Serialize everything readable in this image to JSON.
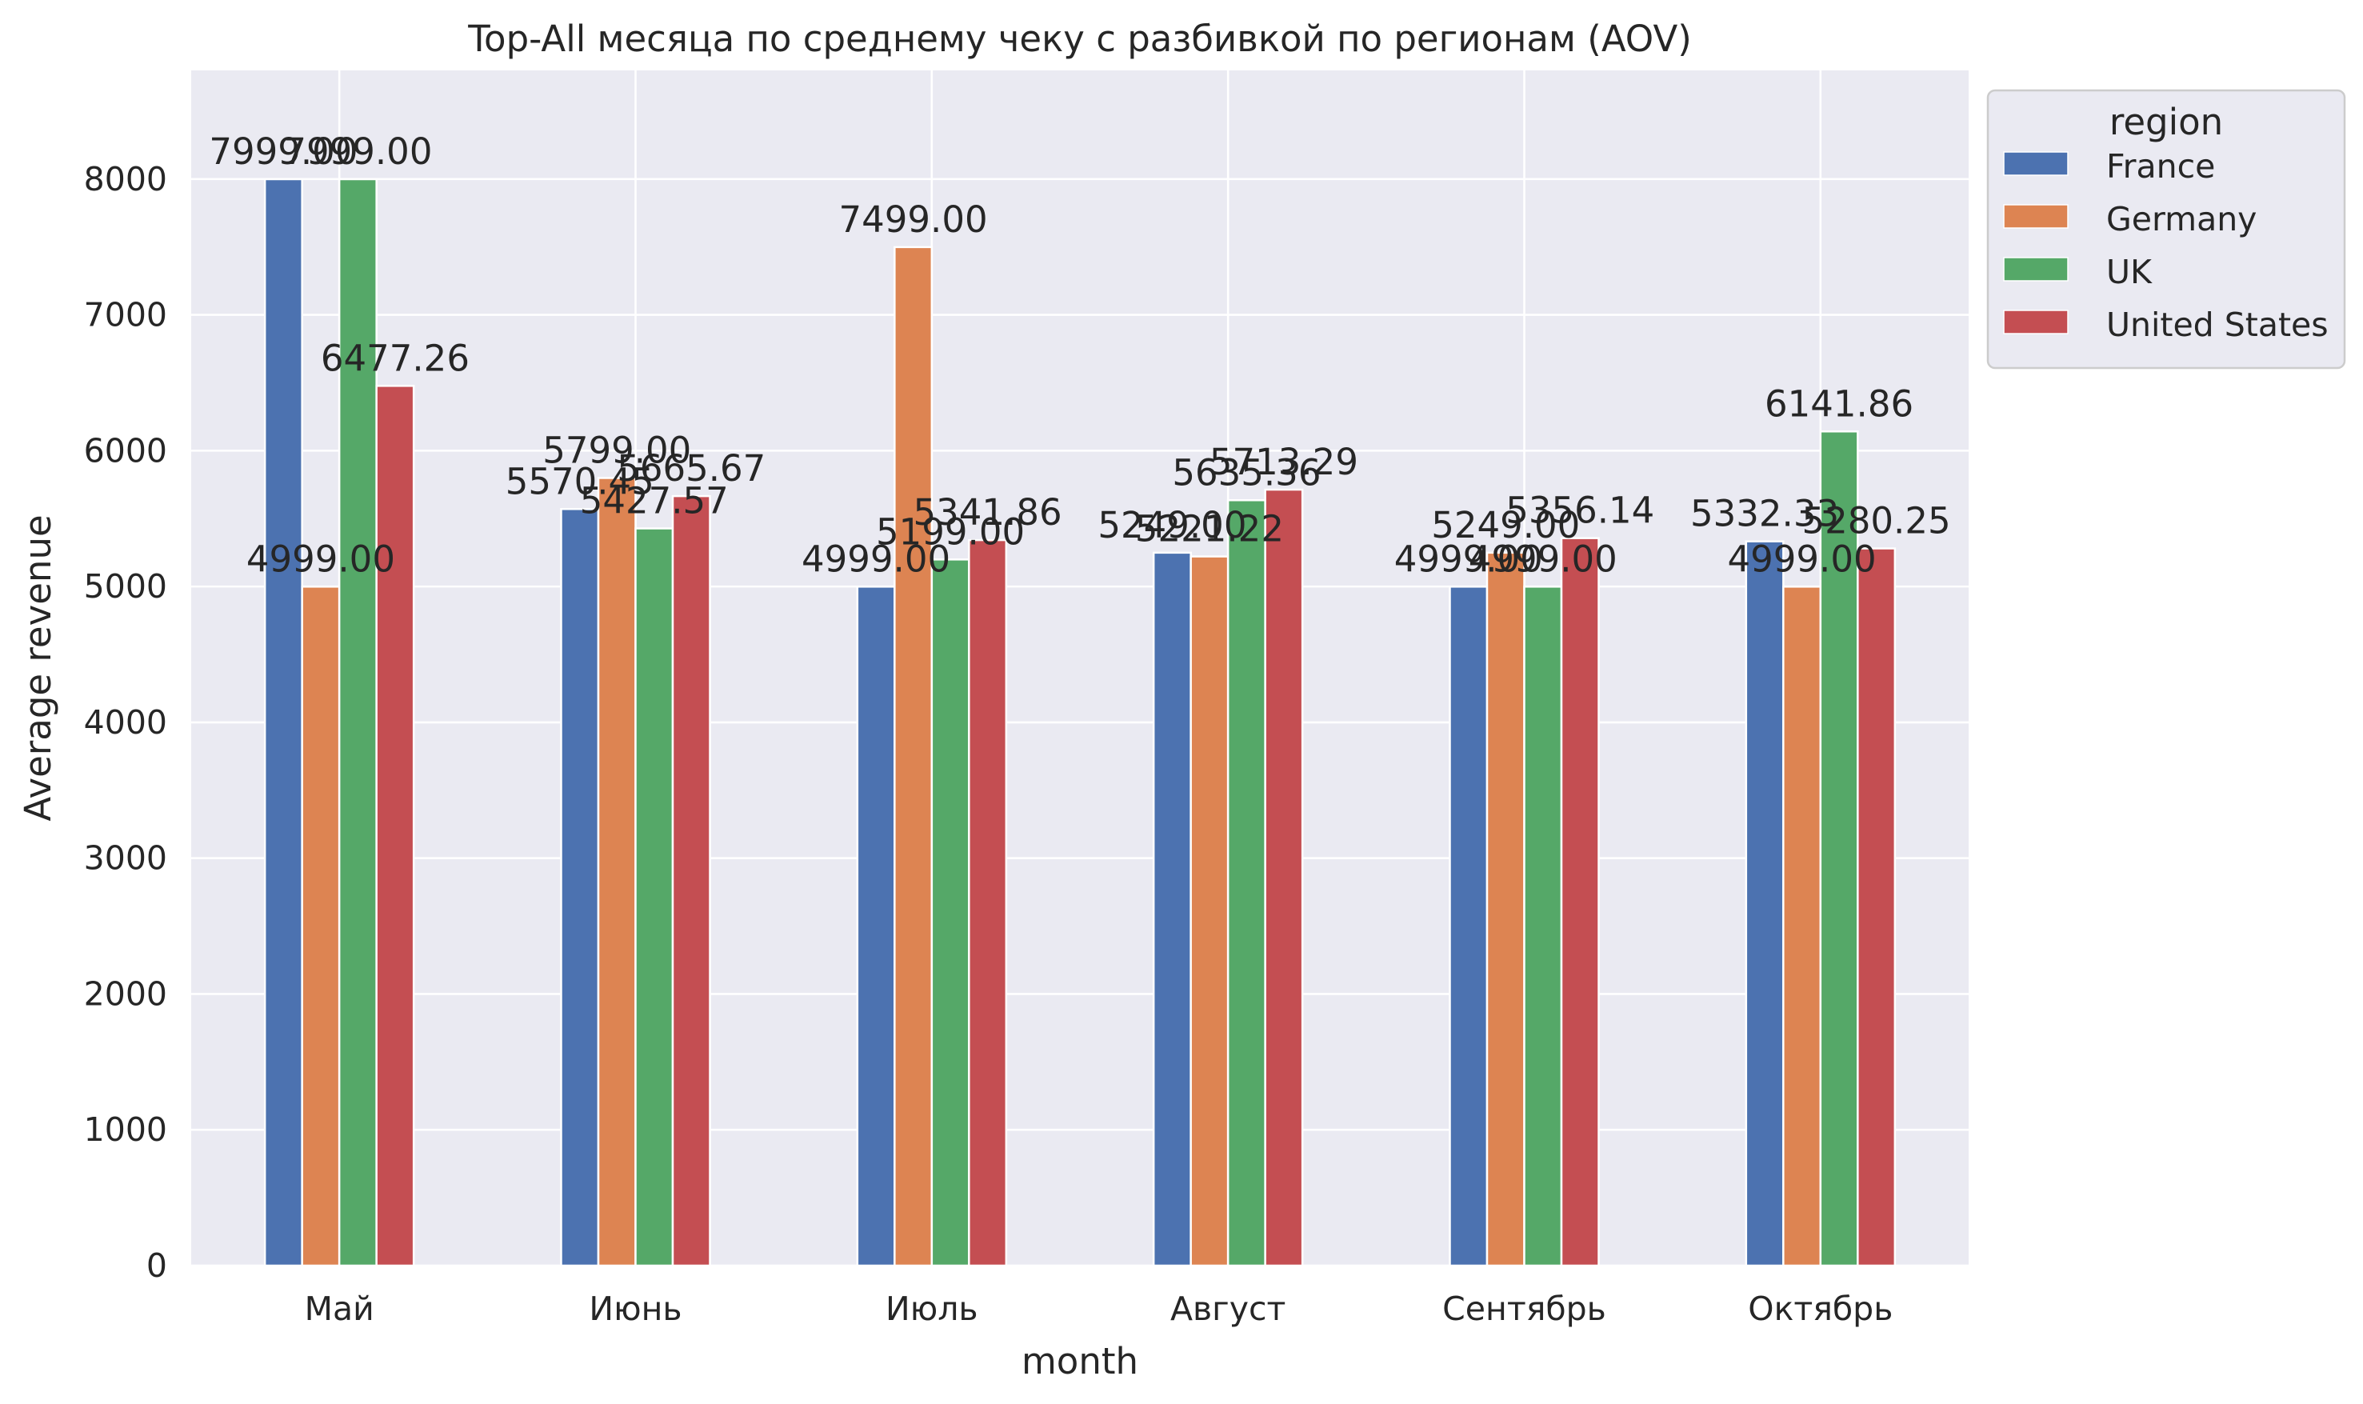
{
  "chart_data": {
    "type": "bar",
    "title": "Top-All месяца по среднему чеку с разбивкой по регионам (AOV)",
    "xlabel": "month",
    "ylabel": "Average revenue",
    "categories": [
      "Май",
      "Июнь",
      "Июль",
      "Август",
      "Сентябрь",
      "Октябрь"
    ],
    "ylim": [
      0,
      8800
    ],
    "yticks": [
      0,
      1000,
      2000,
      3000,
      4000,
      5000,
      6000,
      7000,
      8000
    ],
    "grid": true,
    "legend": {
      "title": "region",
      "placement": "outside top-right"
    },
    "series": [
      {
        "name": "France",
        "color": "#4c72b0",
        "values": [
          7999.0,
          5570.45,
          4999.0,
          5249.0,
          4999.0,
          5332.33
        ],
        "labels": [
          "7999.00",
          "5570.45",
          "4999.00",
          "5249.00",
          "4999.00",
          "5332.33"
        ]
      },
      {
        "name": "Germany",
        "color": "#dd8452",
        "values": [
          4999.0,
          5799.0,
          7499.0,
          5221.22,
          5249.0,
          4999.0
        ],
        "labels": [
          "4999.00",
          "5799.00",
          "7499.00",
          "5221.22",
          "5249.00",
          "4999.00"
        ]
      },
      {
        "name": "UK",
        "color": "#55a868",
        "values": [
          7999.0,
          5427.57,
          5199.0,
          5635.36,
          4999.0,
          6141.86
        ],
        "labels": [
          "7999.00",
          "5427.57",
          "5199.00",
          "5635.36",
          "4999.00",
          "6141.86"
        ]
      },
      {
        "name": "United States",
        "color": "#c44e52",
        "values": [
          6477.26,
          5665.67,
          5341.86,
          5713.29,
          5356.14,
          5280.25
        ],
        "labels": [
          "6477.26",
          "5665.67",
          "5341.86",
          "5713.29",
          "5356.14",
          "5280.25"
        ]
      }
    ]
  },
  "colors": {
    "plot_background": "#eaeaf2",
    "grid": "#ffffff",
    "text": "#262626"
  }
}
